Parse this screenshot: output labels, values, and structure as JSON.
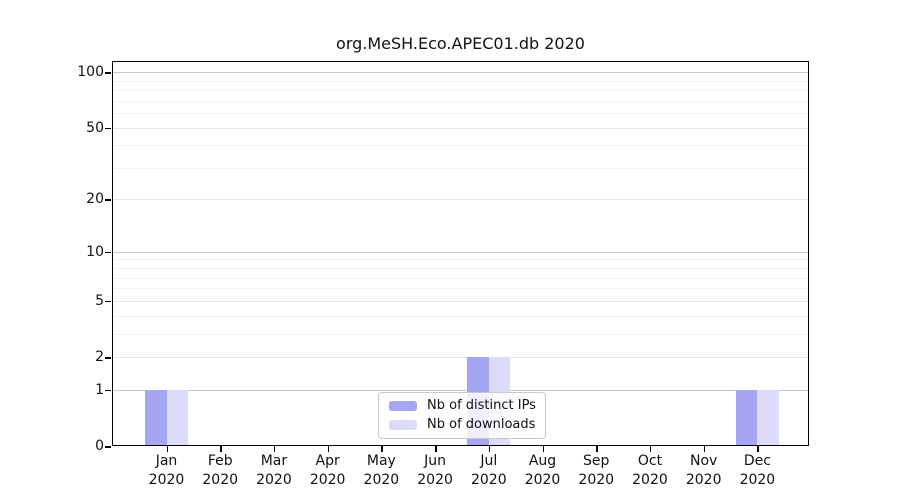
{
  "title": "org.MeSH.Eco.APEC01.db 2020",
  "chart_data": {
    "type": "bar",
    "title": "org.MeSH.Eco.APEC01.db 2020",
    "categories": [
      "Jan",
      "Feb",
      "Mar",
      "Apr",
      "May",
      "Jun",
      "Jul",
      "Aug",
      "Sep",
      "Oct",
      "Nov",
      "Dec"
    ],
    "category_year": "2020",
    "series": [
      {
        "name": "Nb of distinct IPs",
        "color": "#a5a5f2",
        "values": [
          1,
          0,
          0,
          0,
          0,
          0,
          2,
          0,
          0,
          0,
          0,
          1
        ]
      },
      {
        "name": "Nb of downloads",
        "color": "#dcdcfa",
        "values": [
          1,
          0,
          0,
          0,
          0,
          0,
          2,
          0,
          0,
          0,
          0,
          1
        ]
      }
    ],
    "yscale": "log1p",
    "ylim": [
      0,
      113
    ],
    "yticks": [
      0,
      1,
      2,
      5,
      10,
      20,
      50,
      100
    ],
    "minor_gridlines": [
      3,
      4,
      6,
      7,
      8,
      9,
      30,
      40,
      60,
      70,
      80,
      90
    ],
    "emphasized_gridlines": [
      1,
      10,
      100
    ],
    "grid": true,
    "legend_position": "bottom-center"
  },
  "colors": {
    "bar_distinct_ips": "#a5a5f2",
    "bar_downloads": "#dcdcfa",
    "grid_major": "#c8c8c8",
    "grid_mid": "#e6e6e6",
    "grid_minor": "#f2f2f2",
    "axis": "#000000",
    "legend_border": "#c9c9c9",
    "background": "#ffffff"
  }
}
